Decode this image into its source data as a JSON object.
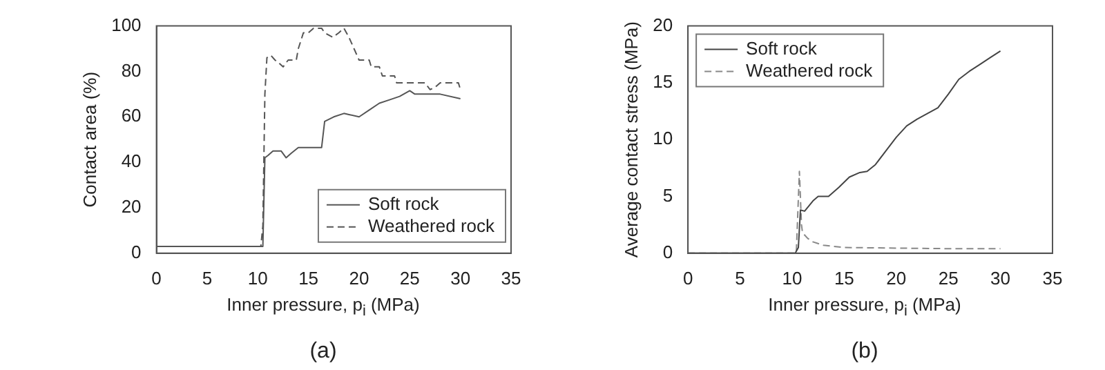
{
  "chart_data": [
    {
      "type": "line",
      "xlabel": "Inner pressure, p$_{i}$ (MPa)",
      "ylabel": "Contact area (%)",
      "annotations": [
        "(a)"
      ],
      "xlim": [
        0,
        35
      ],
      "xticks": [
        0,
        5,
        10,
        15,
        20,
        25,
        30,
        35
      ],
      "ylim": [
        0,
        100
      ],
      "yticks": [
        0,
        20,
        40,
        60,
        80,
        100
      ],
      "legend": "bottom right",
      "grid": false,
      "series": [
        {
          "name": "Soft rock",
          "color": "#555555",
          "line_style": "solid",
          "x": [
            0,
            10.5,
            10.7,
            11,
            11.5,
            12.3,
            12.8,
            13.3,
            14,
            16.3,
            16.6,
            17.5,
            18.5,
            19,
            20,
            21,
            22,
            23,
            24,
            25,
            25.5,
            28,
            30
          ],
          "values": [
            3,
            3,
            42,
            43,
            45,
            45,
            42,
            44,
            46.5,
            46.5,
            58,
            60,
            61.5,
            61,
            60,
            63,
            66,
            67.5,
            69,
            71.5,
            70,
            70,
            68
          ]
        },
        {
          "name": "Weathered rock",
          "color": "#555555",
          "line_style": "dashed",
          "x": [
            0,
            10.3,
            10.5,
            10.7,
            10.9,
            11.3,
            11.7,
            12,
            12.5,
            13,
            13.8,
            14,
            14.5,
            15,
            15.5,
            16.3,
            16.6,
            17.4,
            18,
            18.5,
            19,
            19.5,
            20,
            21,
            21.2,
            22,
            22.3,
            23.5,
            23.7,
            26.5,
            27,
            27.5,
            28,
            29.8,
            30
          ],
          "values": [
            3,
            3,
            12,
            70,
            86,
            87,
            85,
            84,
            82,
            85,
            85,
            90,
            97,
            97,
            99,
            99,
            97,
            95,
            97,
            99,
            95,
            90,
            85,
            85,
            82,
            82,
            78,
            78,
            75,
            75,
            72,
            73,
            75,
            75,
            72
          ]
        }
      ]
    },
    {
      "type": "line",
      "xlabel": "Inner pressure, p$_{i}$ (MPa)",
      "ylabel": "Average contact stress (MPa)",
      "annotations": [
        "(b)"
      ],
      "xlim": [
        0,
        35
      ],
      "xticks": [
        0,
        5,
        10,
        15,
        20,
        25,
        30,
        35
      ],
      "ylim": [
        0,
        20
      ],
      "yticks": [
        0,
        5,
        10,
        15,
        20
      ],
      "legend": "top left",
      "grid": false,
      "series": [
        {
          "name": "Soft rock",
          "color": "#444444",
          "line_style": "solid",
          "x": [
            0,
            10.3,
            10.6,
            10.8,
            11.2,
            12,
            12.5,
            13.5,
            14.5,
            15.5,
            16.5,
            17.2,
            18,
            19,
            20,
            21,
            22,
            23,
            24,
            25,
            26,
            27,
            28,
            29,
            30
          ],
          "values": [
            0,
            0,
            0.5,
            3.8,
            3.7,
            4.6,
            5,
            5,
            5.8,
            6.7,
            7.1,
            7.2,
            7.8,
            9,
            10.2,
            11.2,
            11.8,
            12.3,
            12.8,
            14,
            15.3,
            16,
            16.6,
            17.2,
            17.8
          ]
        },
        {
          "name": "Weathered rock",
          "color": "#888888",
          "line_style": "dashed",
          "x": [
            0,
            10.4,
            10.7,
            10.9,
            11,
            11.5,
            12,
            13,
            14,
            15,
            20,
            25,
            30
          ],
          "values": [
            0,
            0,
            7.2,
            2.5,
            1.8,
            1.3,
            1,
            0.7,
            0.6,
            0.5,
            0.45,
            0.4,
            0.4
          ]
        }
      ]
    }
  ]
}
